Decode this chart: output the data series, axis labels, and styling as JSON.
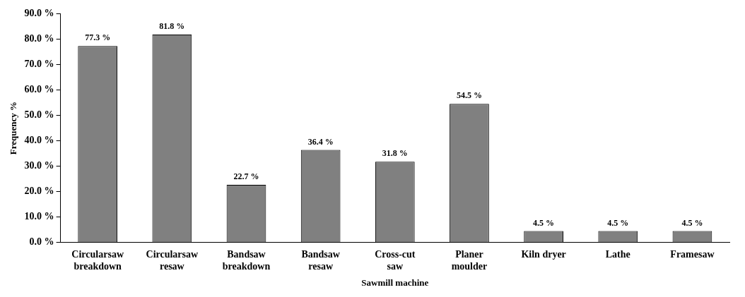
{
  "chart_data": {
    "type": "bar",
    "xlabel": "Sawmill machine",
    "ylabel": "Frequency %",
    "categories": [
      "Circularsaw\nbreakdown",
      "Circularsaw\nresaw",
      "Bandsaw\nbreakdown",
      "Bandsaw\nresaw",
      "Cross-cut\nsaw",
      "Planer\nmoulder",
      "Kiln dryer",
      "Lathe",
      "Framesaw"
    ],
    "values": [
      77.3,
      81.8,
      22.7,
      36.4,
      31.8,
      54.5,
      4.5,
      4.5,
      4.5
    ],
    "value_labels": [
      "77.3 %",
      "81.8 %",
      "22.7 %",
      "36.4 %",
      "31.8 %",
      "54.5 %",
      "4.5 %",
      "4.5 %",
      "4.5 %"
    ],
    "color": "#808080",
    "ylim": [
      0,
      90
    ],
    "yticks": [
      {
        "value": 0,
        "label": "0.0 %"
      },
      {
        "value": 10,
        "label": "10.0 %"
      },
      {
        "value": 20,
        "label": "20.0 %"
      },
      {
        "value": 30,
        "label": "30.0 %"
      },
      {
        "value": 40,
        "label": "40.0 %"
      },
      {
        "value": 50,
        "label": "50.0 %"
      },
      {
        "value": 60,
        "label": "60.0 %"
      },
      {
        "value": 70,
        "label": "70.0 %"
      },
      {
        "value": 80,
        "label": "80.0 %"
      },
      {
        "value": 90,
        "label": "90.0 %"
      }
    ],
    "grid": false,
    "legend": false
  }
}
